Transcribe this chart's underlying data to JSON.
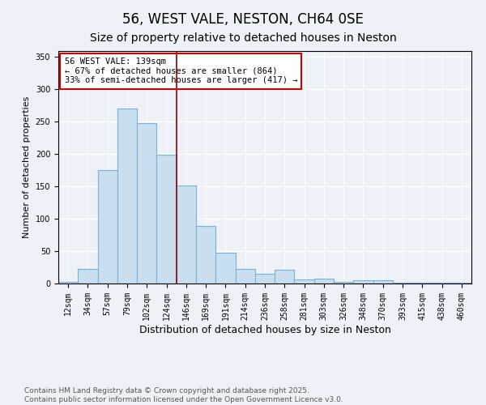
{
  "title": "56, WEST VALE, NESTON, CH64 0SE",
  "subtitle": "Size of property relative to detached houses in Neston",
  "xlabel": "Distribution of detached houses by size in Neston",
  "ylabel": "Number of detached properties",
  "bar_labels": [
    "12sqm",
    "34sqm",
    "57sqm",
    "79sqm",
    "102sqm",
    "124sqm",
    "146sqm",
    "169sqm",
    "191sqm",
    "214sqm",
    "236sqm",
    "258sqm",
    "281sqm",
    "303sqm",
    "326sqm",
    "348sqm",
    "370sqm",
    "393sqm",
    "415sqm",
    "438sqm",
    "460sqm"
  ],
  "bar_values": [
    2,
    23,
    175,
    270,
    248,
    199,
    152,
    89,
    47,
    23,
    15,
    21,
    6,
    7,
    3,
    5,
    5,
    1,
    1,
    1,
    1
  ],
  "bar_color": "#c9dff0",
  "bar_edgecolor": "#7ab0d4",
  "vline_color": "#8b0000",
  "vline_x_index": 5.5,
  "annotation_text": "56 WEST VALE: 139sqm\n← 67% of detached houses are smaller (864)\n33% of semi-detached houses are larger (417) →",
  "annotation_box_facecolor": "#ffffff",
  "annotation_box_edgecolor": "#cc0000",
  "ylim": [
    0,
    360
  ],
  "yticks": [
    0,
    50,
    100,
    150,
    200,
    250,
    300,
    350
  ],
  "footnote": "Contains HM Land Registry data © Crown copyright and database right 2025.\nContains public sector information licensed under the Open Government Licence v3.0.",
  "bg_color": "#eef2f8",
  "grid_color": "#ffffff",
  "title_fontsize": 12,
  "subtitle_fontsize": 10,
  "xlabel_fontsize": 9,
  "ylabel_fontsize": 8,
  "tick_fontsize": 7,
  "annotation_fontsize": 7.5,
  "footnote_fontsize": 6.5
}
